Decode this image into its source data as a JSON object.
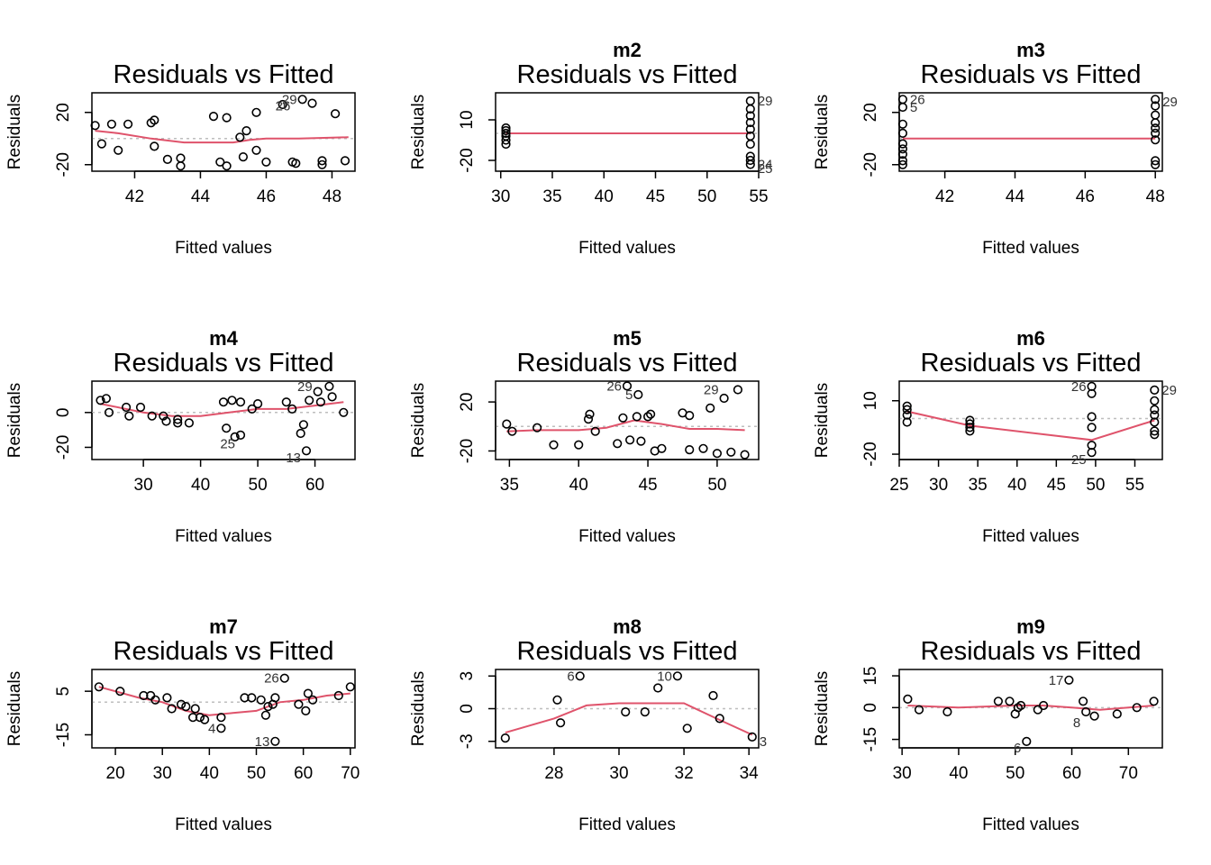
{
  "figure": {
    "panel_title": "Residuals vs Fitted"
  },
  "chart_data": [
    {
      "type": "scatter",
      "model": "",
      "title": "Residuals vs Fitted",
      "xlabel": "Fitted values",
      "ylabel": "Residuals",
      "xlim": [
        40.7,
        48.7
      ],
      "ylim": [
        -25,
        35
      ],
      "xticks": [
        42,
        44,
        46,
        48
      ],
      "yticks": [
        -20,
        20
      ],
      "zero_line": true,
      "points": [
        [
          40.8,
          10
        ],
        [
          41,
          -4
        ],
        [
          41.3,
          11
        ],
        [
          41.5,
          -9
        ],
        [
          41.8,
          11
        ],
        [
          42.5,
          12
        ],
        [
          42.6,
          14
        ],
        [
          42.6,
          -6
        ],
        [
          43,
          -16
        ],
        [
          43.4,
          -15
        ],
        [
          43.4,
          -21
        ],
        [
          44.4,
          17
        ],
        [
          44.6,
          -18
        ],
        [
          44.8,
          -21
        ],
        [
          44.8,
          16
        ],
        [
          45.2,
          1
        ],
        [
          45.3,
          -14
        ],
        [
          45.4,
          6
        ],
        [
          45.7,
          20
        ],
        [
          45.7,
          -9
        ],
        [
          46,
          -18
        ],
        [
          46.5,
          26
        ],
        [
          46.8,
          -18
        ],
        [
          46.9,
          -19
        ],
        [
          47.1,
          30
        ],
        [
          47.4,
          27
        ],
        [
          47.7,
          -17
        ],
        [
          47.7,
          -20
        ],
        [
          48.1,
          19
        ],
        [
          48.4,
          -17
        ]
      ],
      "smooth": [
        [
          40.8,
          6
        ],
        [
          41.5,
          4
        ],
        [
          42.5,
          0
        ],
        [
          43.5,
          -3
        ],
        [
          44.5,
          -3
        ],
        [
          45,
          -3
        ],
        [
          45.5,
          -1
        ],
        [
          46,
          0
        ],
        [
          47,
          0
        ],
        [
          48.5,
          1
        ]
      ],
      "labels": [
        {
          "text": "29",
          "x": 47.1,
          "y": 30
        },
        {
          "text": "26",
          "x": 46.9,
          "y": 25
        }
      ]
    },
    {
      "type": "scatter",
      "model": "m2",
      "title": "Residuals vs Fitted",
      "xlabel": "Fitted values",
      "ylabel": "Residuals",
      "xlim": [
        29.5,
        55
      ],
      "ylim": [
        -28,
        30
      ],
      "xticks": [
        30,
        35,
        40,
        45,
        50,
        55
      ],
      "yticks": [
        -20,
        10
      ],
      "zero_line": true,
      "points": [
        [
          30.5,
          4
        ],
        [
          30.5,
          2
        ],
        [
          30.5,
          0
        ],
        [
          30.5,
          -2
        ],
        [
          30.5,
          -5
        ],
        [
          30.5,
          -8
        ],
        [
          54.2,
          24
        ],
        [
          54.2,
          18
        ],
        [
          54.2,
          13
        ],
        [
          54.2,
          8
        ],
        [
          54.2,
          3
        ],
        [
          54.2,
          -2
        ],
        [
          54.2,
          -8
        ],
        [
          54.2,
          -17
        ],
        [
          54.2,
          -20
        ],
        [
          54.2,
          -23
        ]
      ],
      "smooth": [
        [
          30.5,
          0
        ],
        [
          54.2,
          0
        ]
      ],
      "labels": [
        {
          "text": "29",
          "x": 54.2,
          "y": 24
        },
        {
          "text": "24",
          "x": 54.2,
          "y": -23
        },
        {
          "text": "25",
          "x": 54.2,
          "y": -26
        }
      ]
    },
    {
      "type": "scatter",
      "model": "m3",
      "title": "Residuals vs Fitted",
      "xlabel": "Fitted values",
      "ylabel": "Residuals",
      "xlim": [
        40.7,
        48.2
      ],
      "ylim": [
        -25,
        35
      ],
      "xticks": [
        42,
        44,
        46,
        48
      ],
      "yticks": [
        -20,
        20
      ],
      "zero_line": true,
      "points": [
        [
          40.8,
          30
        ],
        [
          40.8,
          24
        ],
        [
          40.8,
          11
        ],
        [
          40.8,
          4
        ],
        [
          40.8,
          -4
        ],
        [
          40.8,
          -8
        ],
        [
          40.8,
          -12
        ],
        [
          40.8,
          -17
        ],
        [
          40.8,
          -20
        ],
        [
          48,
          30
        ],
        [
          48,
          25
        ],
        [
          48,
          18
        ],
        [
          48,
          12
        ],
        [
          48,
          8
        ],
        [
          48,
          4
        ],
        [
          48,
          -1
        ],
        [
          48,
          -17
        ],
        [
          48,
          -20
        ]
      ],
      "smooth": [
        [
          40.8,
          0
        ],
        [
          48,
          0
        ]
      ],
      "labels": [
        {
          "text": "26",
          "x": 40.8,
          "y": 30
        },
        {
          "text": "5",
          "x": 40.8,
          "y": 24
        },
        {
          "text": "29",
          "x": 48,
          "y": 28
        }
      ]
    },
    {
      "type": "scatter",
      "model": "m4",
      "title": "Residuals vs Fitted",
      "xlabel": "Fitted values",
      "ylabel": "Residuals",
      "xlim": [
        21,
        67
      ],
      "ylim": [
        -27,
        18
      ],
      "xticks": [
        30,
        40,
        50,
        60
      ],
      "yticks": [
        -20,
        0
      ],
      "zero_line": true,
      "points": [
        [
          22.5,
          7
        ],
        [
          23.5,
          8
        ],
        [
          24,
          0
        ],
        [
          27,
          3
        ],
        [
          27.5,
          -2
        ],
        [
          29.5,
          3
        ],
        [
          31.5,
          -2
        ],
        [
          33.5,
          -2
        ],
        [
          34,
          -5
        ],
        [
          36,
          -4
        ],
        [
          36,
          -6
        ],
        [
          38,
          -6
        ],
        [
          44,
          6
        ],
        [
          44.5,
          -9
        ],
        [
          45.5,
          7
        ],
        [
          46,
          -14
        ],
        [
          47,
          6
        ],
        [
          47,
          -13
        ],
        [
          49,
          2
        ],
        [
          50,
          5
        ],
        [
          55,
          6
        ],
        [
          56,
          2
        ],
        [
          57.5,
          -12
        ],
        [
          58,
          -7
        ],
        [
          58.5,
          -22
        ],
        [
          59,
          7
        ],
        [
          60.5,
          12
        ],
        [
          61,
          6
        ],
        [
          62.5,
          15
        ],
        [
          63,
          9
        ],
        [
          65,
          0
        ]
      ],
      "smooth": [
        [
          22.5,
          5
        ],
        [
          30,
          0
        ],
        [
          35,
          -2
        ],
        [
          40,
          -2
        ],
        [
          45,
          0
        ],
        [
          50,
          2
        ],
        [
          55,
          2
        ],
        [
          60,
          4
        ],
        [
          65,
          6
        ]
      ],
      "labels": [
        {
          "text": "29",
          "x": 60.5,
          "y": 15
        },
        {
          "text": "25",
          "x": 47,
          "y": -18
        },
        {
          "text": "13",
          "x": 58.5,
          "y": -26
        }
      ]
    },
    {
      "type": "scatter",
      "model": "m5",
      "title": "Residuals vs Fitted",
      "xlabel": "Fitted values",
      "ylabel": "Residuals",
      "xlim": [
        34,
        53
      ],
      "ylim": [
        -27,
        37
      ],
      "xticks": [
        35,
        40,
        45,
        50
      ],
      "yticks": [
        -20,
        20
      ],
      "zero_line": true,
      "points": [
        [
          34.8,
          2
        ],
        [
          35.2,
          -4
        ],
        [
          37,
          -1
        ],
        [
          38.2,
          -15
        ],
        [
          40,
          -15
        ],
        [
          40.7,
          6
        ],
        [
          40.8,
          10
        ],
        [
          41.2,
          -4
        ],
        [
          42.8,
          -14
        ],
        [
          43.2,
          7
        ],
        [
          43.5,
          33
        ],
        [
          43.7,
          -11
        ],
        [
          44.2,
          8
        ],
        [
          44.3,
          26
        ],
        [
          44.5,
          -12
        ],
        [
          45,
          8
        ],
        [
          45.2,
          10
        ],
        [
          45.5,
          -20
        ],
        [
          46,
          -18
        ],
        [
          47.5,
          11
        ],
        [
          48,
          9
        ],
        [
          48,
          -19
        ],
        [
          49,
          -18
        ],
        [
          49.5,
          15
        ],
        [
          50,
          -22
        ],
        [
          50.5,
          23
        ],
        [
          51,
          -21
        ],
        [
          51.5,
          30
        ],
        [
          52,
          -23
        ]
      ],
      "smooth": [
        [
          34.8,
          -4
        ],
        [
          37,
          -3
        ],
        [
          40,
          -3
        ],
        [
          42,
          -1
        ],
        [
          44,
          5
        ],
        [
          46,
          2
        ],
        [
          48,
          -2
        ],
        [
          50,
          -2
        ],
        [
          52,
          -3
        ]
      ],
      "labels": [
        {
          "text": "26",
          "x": 43.5,
          "y": 33
        },
        {
          "text": "5",
          "x": 44.3,
          "y": 26
        },
        {
          "text": "29",
          "x": 50.5,
          "y": 30
        }
      ]
    },
    {
      "type": "scatter",
      "model": "m6",
      "title": "Residuals vs Fitted",
      "xlabel": "Fitted values",
      "ylabel": "Residuals",
      "xlim": [
        25,
        58.5
      ],
      "ylim": [
        -23,
        21
      ],
      "xticks": [
        25,
        30,
        35,
        40,
        45,
        50,
        55
      ],
      "yticks": [
        -20,
        10
      ],
      "zero_line": true,
      "points": [
        [
          26,
          7
        ],
        [
          26,
          5
        ],
        [
          26,
          2
        ],
        [
          26,
          -2
        ],
        [
          34,
          -1
        ],
        [
          34,
          -3
        ],
        [
          34,
          -5
        ],
        [
          34,
          -7
        ],
        [
          49.5,
          18
        ],
        [
          49.5,
          14
        ],
        [
          49.5,
          1
        ],
        [
          49.5,
          -5
        ],
        [
          49.5,
          -15
        ],
        [
          49.5,
          -19
        ],
        [
          57.5,
          16
        ],
        [
          57.5,
          10
        ],
        [
          57.5,
          5
        ],
        [
          57.5,
          2
        ],
        [
          57.5,
          -2
        ],
        [
          57.5,
          -7
        ],
        [
          57.5,
          -9
        ]
      ],
      "smooth": [
        [
          26,
          4
        ],
        [
          34,
          -4
        ],
        [
          49.5,
          -12
        ],
        [
          57.5,
          -1
        ]
      ],
      "labels": [
        {
          "text": "26",
          "x": 49.5,
          "y": 18
        },
        {
          "text": "29",
          "x": 57.5,
          "y": 16
        },
        {
          "text": "25",
          "x": 49.5,
          "y": -23
        }
      ]
    },
    {
      "type": "scatter",
      "model": "m7",
      "title": "Residuals vs Fitted",
      "xlabel": "Fitted values",
      "ylabel": "Residuals",
      "xlim": [
        15,
        71
      ],
      "ylim": [
        -21,
        15
      ],
      "xticks": [
        20,
        30,
        40,
        50,
        60,
        70
      ],
      "yticks": [
        -15,
        5
      ],
      "zero_line": true,
      "points": [
        [
          16.5,
          7
        ],
        [
          21,
          5
        ],
        [
          26,
          3
        ],
        [
          27.5,
          3
        ],
        [
          28.5,
          1
        ],
        [
          31,
          2
        ],
        [
          32,
          -3
        ],
        [
          34,
          -1
        ],
        [
          35,
          -2
        ],
        [
          36.5,
          -7
        ],
        [
          37,
          -3
        ],
        [
          38,
          -7
        ],
        [
          39,
          -8
        ],
        [
          42.5,
          -7
        ],
        [
          42.5,
          -12
        ],
        [
          47.5,
          2
        ],
        [
          49,
          2
        ],
        [
          51,
          1
        ],
        [
          52,
          -6
        ],
        [
          52.5,
          -2
        ],
        [
          53.5,
          -1
        ],
        [
          54,
          2
        ],
        [
          54,
          -18
        ],
        [
          56,
          11
        ],
        [
          59,
          -1
        ],
        [
          60.5,
          -4
        ],
        [
          61,
          4
        ],
        [
          62,
          1
        ],
        [
          67.5,
          3
        ],
        [
          70,
          7
        ]
      ],
      "smooth": [
        [
          16.5,
          7
        ],
        [
          20,
          5
        ],
        [
          25,
          2
        ],
        [
          30,
          0
        ],
        [
          35,
          -4
        ],
        [
          40,
          -6
        ],
        [
          45,
          -5
        ],
        [
          50,
          -4
        ],
        [
          55,
          0
        ],
        [
          60,
          1
        ],
        [
          65,
          3
        ],
        [
          70,
          4
        ]
      ],
      "labels": [
        {
          "text": "26",
          "x": 56,
          "y": 11
        },
        {
          "text": "4",
          "x": 42.5,
          "y": -12
        },
        {
          "text": "13",
          "x": 54,
          "y": -18
        }
      ]
    },
    {
      "type": "scatter",
      "model": "m8",
      "title": "Residuals vs Fitted",
      "xlabel": "Fitted values",
      "ylabel": "Residuals",
      "xlim": [
        26.2,
        34.3
      ],
      "ylim": [
        -3.6,
        3.6
      ],
      "xticks": [
        28,
        30,
        32,
        34
      ],
      "yticks": [
        -3,
        0,
        3
      ],
      "zero_line": true,
      "points": [
        [
          26.5,
          -2.7
        ],
        [
          28.1,
          0.8
        ],
        [
          28.2,
          -1.3
        ],
        [
          28.8,
          3
        ],
        [
          30.2,
          -0.3
        ],
        [
          30.8,
          -0.3
        ],
        [
          31.2,
          1.9
        ],
        [
          31.8,
          3
        ],
        [
          32.1,
          -1.8
        ],
        [
          32.9,
          1.2
        ],
        [
          33.1,
          -0.9
        ],
        [
          34.1,
          -2.6
        ]
      ],
      "smooth": [
        [
          26.5,
          -2.2
        ],
        [
          28,
          -0.9
        ],
        [
          29,
          0.3
        ],
        [
          30,
          0.5
        ],
        [
          31,
          0.5
        ],
        [
          32,
          0.5
        ],
        [
          33,
          -0.9
        ],
        [
          34.1,
          -2.4
        ]
      ],
      "labels": [
        {
          "text": "6",
          "x": 28.8,
          "y": 3
        },
        {
          "text": "10",
          "x": 31.8,
          "y": 3
        },
        {
          "text": "3",
          "x": 34.1,
          "y": -3
        }
      ]
    },
    {
      "type": "scatter",
      "model": "m9",
      "title": "Residuals vs Fitted",
      "xlabel": "Fitted values",
      "ylabel": "Residuals",
      "xlim": [
        29.5,
        76
      ],
      "ylim": [
        -19,
        18
      ],
      "xticks": [
        30,
        40,
        50,
        60,
        70
      ],
      "yticks": [
        -15,
        0,
        15
      ],
      "zero_line": true,
      "points": [
        [
          31,
          4
        ],
        [
          33,
          -1
        ],
        [
          38,
          -2
        ],
        [
          47,
          3
        ],
        [
          49,
          3
        ],
        [
          50,
          -3
        ],
        [
          50.5,
          0
        ],
        [
          51,
          1
        ],
        [
          52,
          -16
        ],
        [
          54,
          -1
        ],
        [
          55,
          1
        ],
        [
          59.5,
          13
        ],
        [
          62,
          3
        ],
        [
          62.5,
          -2
        ],
        [
          64,
          -4
        ],
        [
          68,
          -3
        ],
        [
          71.5,
          0
        ],
        [
          74.5,
          3
        ]
      ],
      "smooth": [
        [
          31,
          1
        ],
        [
          40,
          0
        ],
        [
          50,
          1
        ],
        [
          55,
          1
        ],
        [
          60,
          0
        ],
        [
          65,
          -1
        ],
        [
          70,
          0
        ],
        [
          74.5,
          1
        ]
      ],
      "labels": [
        {
          "text": "17",
          "x": 59.5,
          "y": 13
        },
        {
          "text": "8",
          "x": 62.5,
          "y": -7
        },
        {
          "text": "6",
          "x": 52,
          "y": -19
        }
      ]
    }
  ]
}
